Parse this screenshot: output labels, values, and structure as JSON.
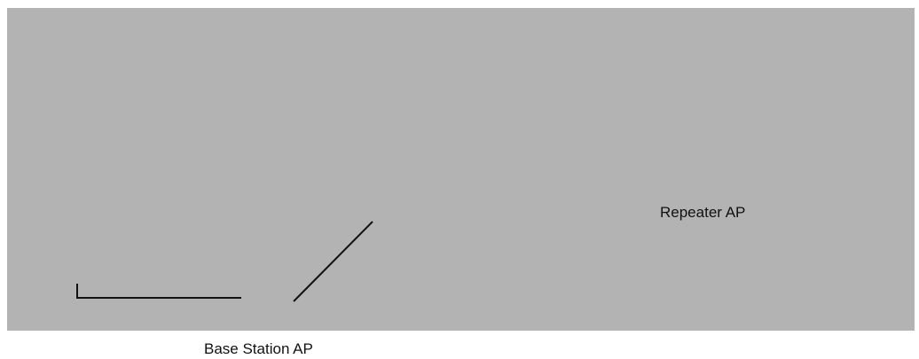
{
  "labels": {
    "repeater": "Repeater AP",
    "base_station": "Base Station AP"
  },
  "colors": {
    "background_panel": "#b3b3b3",
    "line": "#111111",
    "page": "#ffffff"
  }
}
